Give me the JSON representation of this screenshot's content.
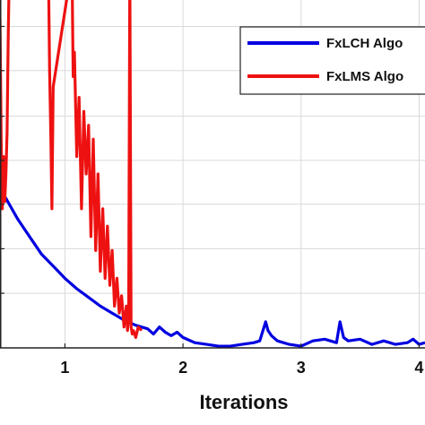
{
  "chart_data": {
    "type": "line",
    "xlabel": "Iterations",
    "ylabel": "",
    "title": "",
    "xlim": [
      0.45,
      4.05
    ],
    "ylim": [
      0.0,
      1.0
    ],
    "xticks": [
      1,
      2,
      3,
      4
    ],
    "xtick_labels": [
      "1",
      "2",
      "3",
      "4"
    ],
    "yticks": [
      0.157,
      0.285,
      0.413,
      0.539,
      0.666,
      0.797,
      0.924
    ],
    "grid": true,
    "legend_position": "top-right",
    "colors": {
      "fxlch": "#0000e0",
      "fxlms": "#ee1111"
    },
    "series": [
      {
        "name": "FxLCH Algo",
        "color": "#0000e0",
        "x": [
          0.45,
          0.5,
          0.6,
          0.7,
          0.8,
          0.9,
          1.0,
          1.1,
          1.2,
          1.3,
          1.4,
          1.5,
          1.6,
          1.7,
          1.75,
          1.8,
          1.85,
          1.9,
          1.95,
          2.0,
          2.1,
          2.2,
          2.3,
          2.4,
          2.5,
          2.6,
          2.65,
          2.7,
          2.72,
          2.75,
          2.8,
          2.9,
          3.0,
          3.1,
          3.2,
          3.3,
          3.33,
          3.36,
          3.4,
          3.5,
          3.6,
          3.7,
          3.8,
          3.9,
          3.95,
          4.0,
          4.05
        ],
        "values": [
          0.45,
          0.43,
          0.37,
          0.32,
          0.27,
          0.235,
          0.2,
          0.17,
          0.145,
          0.12,
          0.1,
          0.08,
          0.065,
          0.055,
          0.04,
          0.06,
          0.045,
          0.035,
          0.045,
          0.03,
          0.015,
          0.01,
          0.005,
          0.005,
          0.01,
          0.015,
          0.02,
          0.075,
          0.05,
          0.035,
          0.02,
          0.01,
          0.005,
          0.02,
          0.025,
          0.015,
          0.075,
          0.03,
          0.02,
          0.025,
          0.01,
          0.02,
          0.01,
          0.015,
          0.025,
          0.01,
          0.015
        ]
      },
      {
        "name": "FxLMS Algo",
        "color": "#ee1111",
        "x": [
          0.45,
          0.46,
          0.47,
          0.48,
          0.49,
          0.5,
          0.51,
          0.52,
          0.53,
          0.86,
          0.87,
          0.88,
          0.89,
          0.9,
          1.06,
          1.07,
          1.08,
          1.1,
          1.12,
          1.14,
          1.16,
          1.18,
          1.2,
          1.22,
          1.24,
          1.26,
          1.28,
          1.3,
          1.32,
          1.34,
          1.36,
          1.38,
          1.4,
          1.42,
          1.44,
          1.46,
          1.48,
          1.5,
          1.52,
          1.53,
          1.54,
          1.55,
          1.56,
          1.57,
          1.58,
          1.6,
          1.62,
          1.65
        ],
        "values": [
          0.95,
          0.6,
          0.4,
          0.55,
          0.42,
          0.5,
          0.62,
          0.9,
          1.1,
          1.1,
          0.8,
          0.62,
          0.4,
          0.75,
          1.1,
          0.78,
          0.85,
          0.55,
          0.72,
          0.4,
          0.68,
          0.5,
          0.64,
          0.32,
          0.6,
          0.28,
          0.5,
          0.22,
          0.4,
          0.2,
          0.35,
          0.18,
          0.28,
          0.12,
          0.2,
          0.1,
          0.15,
          0.06,
          0.12,
          0.05,
          0.09,
          1.1,
          0.06,
          0.04,
          0.05,
          0.03,
          0.06,
          0.05
        ]
      }
    ]
  }
}
